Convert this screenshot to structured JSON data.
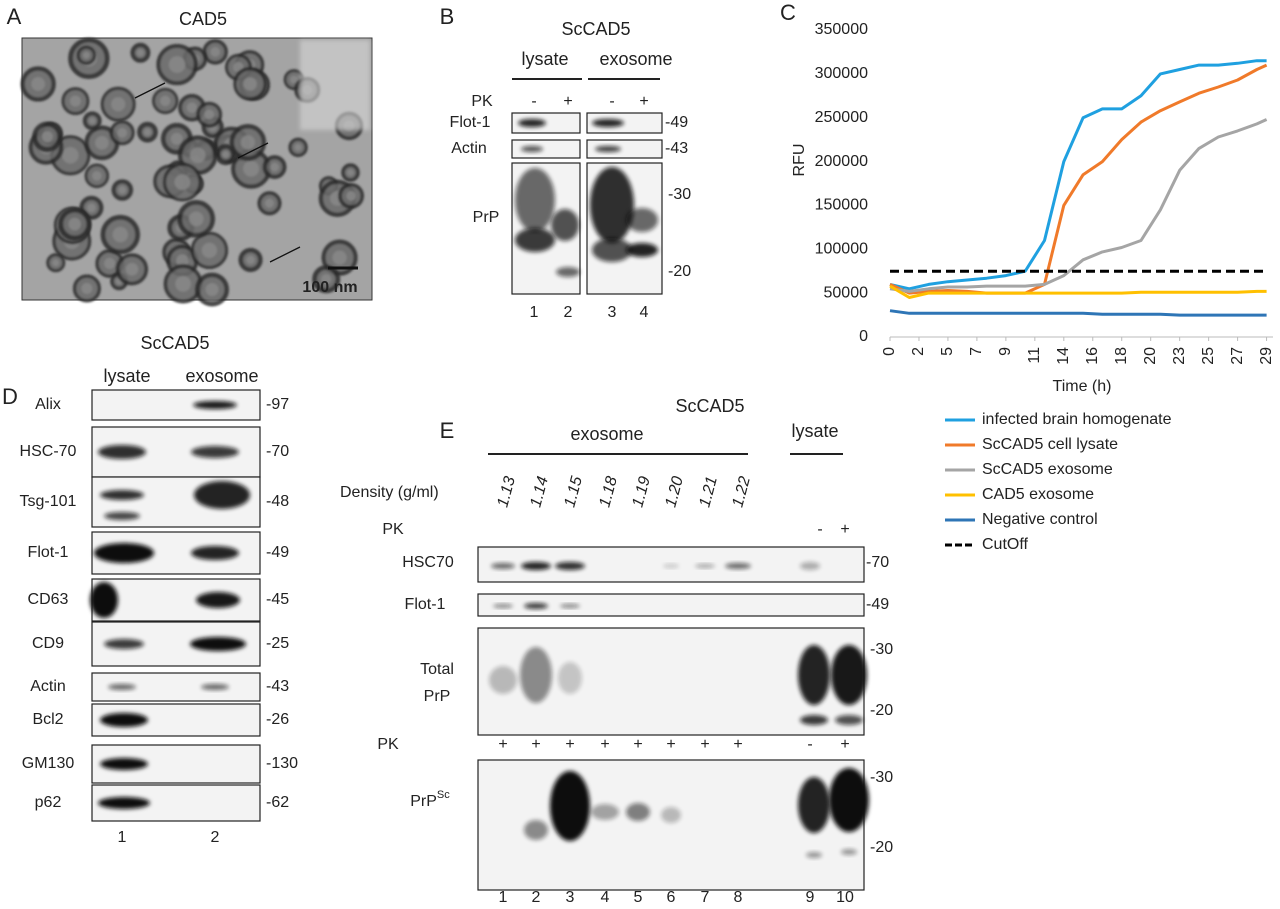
{
  "panels": {
    "A": {
      "letter": "A",
      "title": "CAD5",
      "scale": "100 nm"
    },
    "B": {
      "letter": "B",
      "title": "ScCAD5",
      "groups": [
        "lysate",
        "exosome"
      ],
      "pk_label": "PK",
      "pk": [
        "-",
        "+",
        "-",
        "+"
      ],
      "rows": [
        "Flot-1",
        "Actin",
        "PrP"
      ],
      "markers": [
        "-49",
        "-43",
        "-30",
        "-20"
      ],
      "lanes": [
        "1",
        "2",
        "3",
        "4"
      ]
    },
    "C": {
      "letter": "C"
    },
    "D": {
      "letter": "D",
      "title": "ScCAD5",
      "groups": [
        "lysate",
        "exosome"
      ],
      "rows": [
        {
          "label": "Alix",
          "marker": "-97"
        },
        {
          "label": "HSC-70",
          "marker": "-70"
        },
        {
          "label": "Tsg-101",
          "marker": "-48"
        },
        {
          "label": "Flot-1",
          "marker": "-49"
        },
        {
          "label": "CD63",
          "marker": "-45"
        },
        {
          "label": "CD9",
          "marker": "-25"
        },
        {
          "label": "Actin",
          "marker": "-43"
        },
        {
          "label": "Bcl2",
          "marker": "-26"
        },
        {
          "label": "GM130",
          "marker": "-130"
        },
        {
          "label": "p62",
          "marker": "-62"
        }
      ],
      "lanes": [
        "1",
        "2"
      ]
    },
    "E": {
      "letter": "E",
      "title": "ScCAD5",
      "groups": [
        "exosome",
        "lysate"
      ],
      "density_label": "Density (g/ml)",
      "densities": [
        "1.13",
        "1.14",
        "1.15",
        "1.18",
        "1.19",
        "1.20",
        "1.21",
        "1.22"
      ],
      "pk_label": "PK",
      "pk_top": [
        "-",
        "+"
      ],
      "hsc70": {
        "label": "HSC70",
        "marker": "-70"
      },
      "flot1": {
        "label": "Flot-1",
        "marker": "-49"
      },
      "total_prp": {
        "label": [
          "Total",
          "PrP"
        ],
        "markers": [
          "-30",
          "-20"
        ]
      },
      "pk_mid_label": "PK",
      "pk_mid": [
        "+",
        "+",
        "+",
        "+",
        "+",
        "+",
        "+",
        "+",
        "-",
        "+"
      ],
      "prpsc": {
        "label": "PrP",
        "sup": "Sc",
        "markers": [
          "-30",
          "-20"
        ]
      },
      "lanes": [
        "1",
        "2",
        "3",
        "4",
        "5",
        "6",
        "7",
        "8",
        "9",
        "10"
      ]
    }
  },
  "chart_data": {
    "type": "line",
    "x_label": "Time (h)",
    "y_label": "RFU",
    "x": [
      0,
      1.5,
      3,
      4.5,
      6,
      7.5,
      9,
      10.5,
      12,
      13.5,
      15,
      16.5,
      18,
      19.5,
      21,
      22.5,
      24,
      25.5,
      27,
      28.5,
      29.25
    ],
    "series": [
      {
        "name": "infected brain homogenate",
        "color": "#1fa0e0",
        "values": [
          60000,
          55000,
          60000,
          63000,
          65000,
          67000,
          70000,
          75000,
          110000,
          200000,
          250000,
          260000,
          260000,
          275000,
          300000,
          305000,
          310000,
          310000,
          312000,
          315000,
          315000
        ]
      },
      {
        "name": "ScCAD5 cell lysate",
        "color": "#f07a2a",
        "values": [
          60000,
          50000,
          52000,
          53000,
          52000,
          50000,
          50000,
          50000,
          60000,
          150000,
          185000,
          200000,
          225000,
          245000,
          258000,
          268000,
          278000,
          285000,
          293000,
          305000,
          310000
        ]
      },
      {
        "name": "ScCAD5 exosome",
        "color": "#a5a5a5",
        "values": [
          55000,
          52000,
          55000,
          57000,
          57000,
          58000,
          58000,
          58000,
          60000,
          70000,
          88000,
          97000,
          102000,
          110000,
          145000,
          190000,
          215000,
          228000,
          235000,
          243000,
          248000
        ]
      },
      {
        "name": "CAD5 exosome",
        "color": "#ffc000",
        "values": [
          58000,
          45000,
          50000,
          50000,
          50000,
          50000,
          50000,
          50000,
          50000,
          50000,
          50000,
          50000,
          50000,
          51000,
          51000,
          51000,
          51000,
          51000,
          51000,
          52000,
          52000
        ]
      },
      {
        "name": "Negative control",
        "color": "#2e75b6",
        "values": [
          30000,
          27000,
          27000,
          27000,
          27000,
          27000,
          27000,
          27000,
          27000,
          27000,
          27000,
          26000,
          26000,
          26000,
          26000,
          25000,
          25000,
          25000,
          25000,
          25000,
          25000
        ]
      },
      {
        "name": "CutOff",
        "color": "#000000",
        "dashed": true,
        "values": [
          75000,
          75000,
          75000,
          75000,
          75000,
          75000,
          75000,
          75000,
          75000,
          75000,
          75000,
          75000,
          75000,
          75000,
          75000,
          75000,
          75000,
          75000,
          75000,
          75000,
          75000
        ]
      }
    ],
    "xlim": [
      0,
      29.75
    ],
    "xticks": [
      0,
      {
        "value": 2.25,
        "label": "2"
      },
      {
        "value": 4.5,
        "label": "5"
      },
      {
        "value": 6.75,
        "label": "7"
      },
      9,
      {
        "value": 11.25,
        "label": "11"
      },
      {
        "value": 13.5,
        "label": "14"
      },
      {
        "value": 15.75,
        "label": "16"
      },
      18,
      {
        "value": 20.25,
        "label": "20"
      },
      {
        "value": 22.5,
        "label": "23"
      },
      {
        "value": 24.75,
        "label": "25"
      },
      27,
      {
        "value": 29.25,
        "label": "29"
      }
    ],
    "ylim": [
      0,
      350000
    ],
    "yticks": [
      0,
      50000,
      100000,
      150000,
      200000,
      250000,
      300000,
      350000
    ],
    "grid": false,
    "legend": "below"
  }
}
